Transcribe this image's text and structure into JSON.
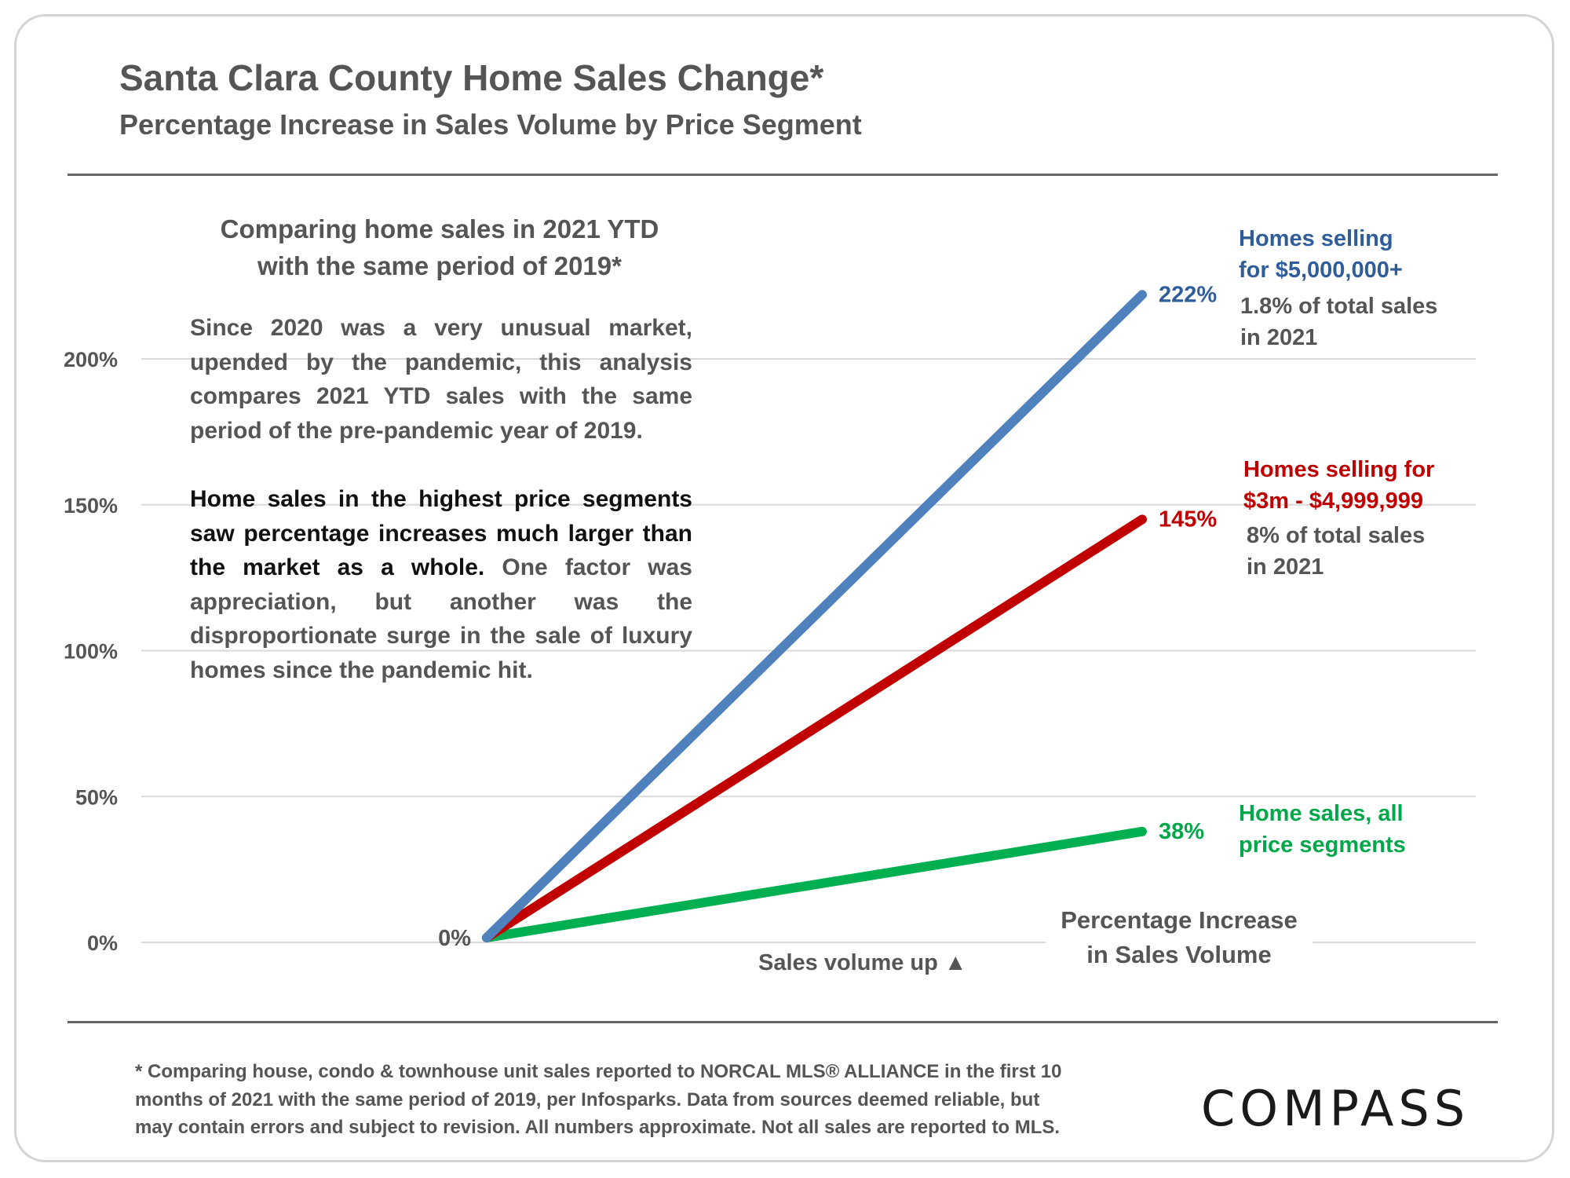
{
  "header": {
    "title": "Santa Clara County Home Sales Change*",
    "subtitle": "Percentage Increase in Sales Volume by Price Segment"
  },
  "intro": {
    "heading_line1": "Comparing home sales in 2021 YTD",
    "heading_line2": "with the same period of 2019*",
    "para1": "Since 2020 was a very unusual market, upended by the pandemic, this analysis compares 2021 YTD sales with the same period of the pre-pandemic year of 2019.",
    "para2_strong": "Home sales in the highest price segments saw percentage increases much larger than the market as a whole.",
    "para2_rest": " One factor was appreciation, but another was the disproportionate surge in the sale of luxury homes since the pandemic hit."
  },
  "chart_data": {
    "type": "line",
    "x": [
      "2019",
      "2021"
    ],
    "ylim": [
      0,
      200
    ],
    "yticks": [
      {
        "value": 0,
        "label": "0%"
      },
      {
        "value": 50,
        "label": "50%"
      },
      {
        "value": 100,
        "label": "100%"
      },
      {
        "value": 150,
        "label": "150%"
      },
      {
        "value": 200,
        "label": "200%"
      }
    ],
    "grid": true,
    "start_label": "0%",
    "xlabel": "Sales volume up ▲",
    "axis_title_line1": "Percentage Increase",
    "axis_title_line2": "in Sales Volume",
    "series": [
      {
        "values": [
          0,
          222
        ],
        "end_label": "222%",
        "color": "#4f81bd",
        "label_line1": "Homes selling",
        "label_line2": "for $5,000,000+",
        "note_line1": "1.8% of total sales",
        "note_line2": "in 2021"
      },
      {
        "values": [
          0,
          145
        ],
        "end_label": "145%",
        "color": "#c00000",
        "label_line1": "Homes selling for",
        "label_line2": "$3m - $4,999,999",
        "note_line1": "8% of total sales",
        "note_line2": "in 2021"
      },
      {
        "values": [
          0,
          38
        ],
        "end_label": "38%",
        "color": "#00b050",
        "label_line1": "Home sales, all",
        "label_line2": "price segments"
      }
    ]
  },
  "footnote": {
    "line1": "* Comparing house, condo & townhouse unit sales reported to NORCAL MLS® ALLIANCE in the first 10",
    "line2": "months of 2021 with the same period of 2019, per Infosparks. Data from sources deemed reliable, but",
    "line3": "may contain errors and subject to revision. All numbers approximate. Not all sales are reported to MLS."
  },
  "logo": "COMPASS"
}
